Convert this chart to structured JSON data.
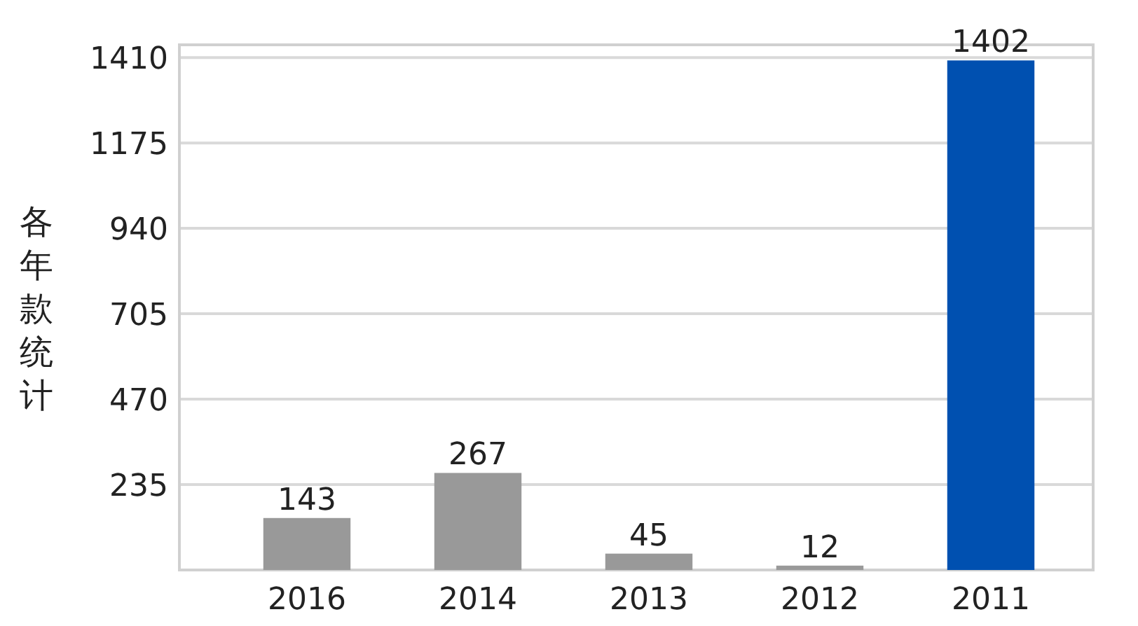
{
  "chart_data": {
    "type": "bar",
    "ylabel": "各年款统计",
    "categories": [
      "2016",
      "2014",
      "2013",
      "2012",
      "2011"
    ],
    "values": [
      143,
      267,
      45,
      12,
      1402
    ],
    "colors": [
      "#999999",
      "#999999",
      "#999999",
      "#999999",
      "#0050b0"
    ],
    "ylim": [
      0,
      1445
    ],
    "yticks": [
      235,
      470,
      705,
      940,
      1175,
      1410
    ],
    "grid": "y",
    "data_labels": true
  }
}
